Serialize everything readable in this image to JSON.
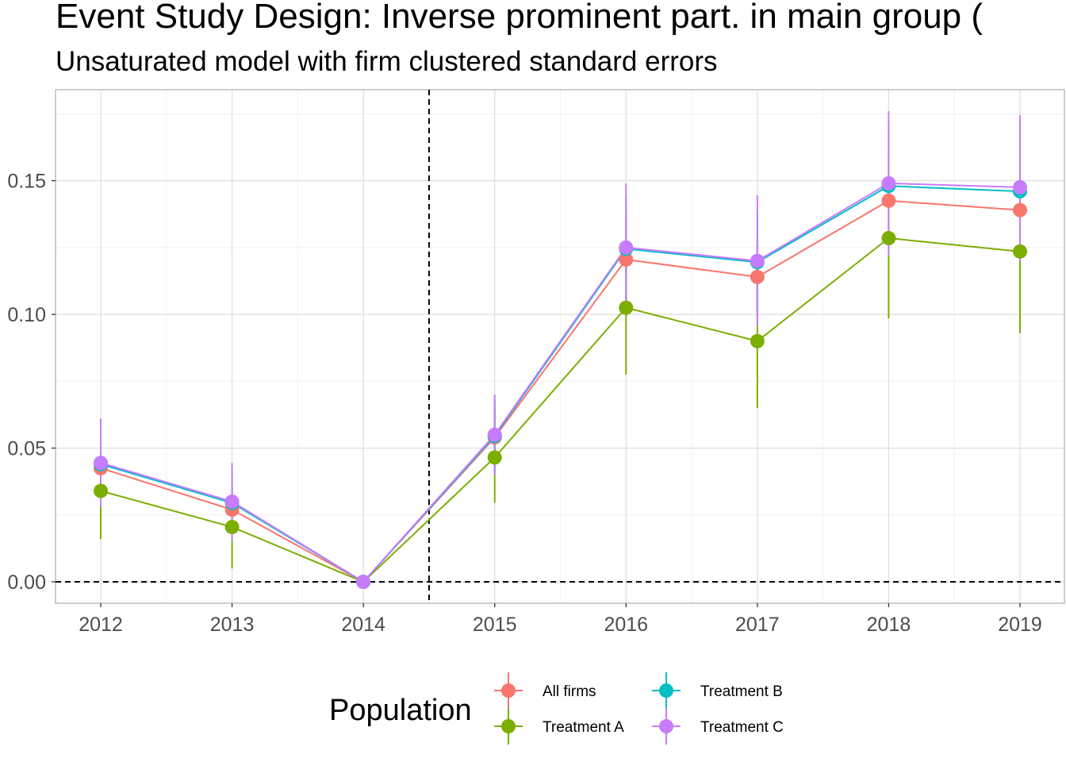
{
  "chart_data": {
    "type": "line",
    "title": "Event Study Design: Inverse prominent part. in main group (",
    "subtitle": "Unsaturated model with firm clustered standard errors",
    "xlabel": "",
    "ylabel": "",
    "categories": [
      "2012",
      "2013",
      "2014",
      "2015",
      "2016",
      "2017",
      "2018",
      "2019"
    ],
    "ylim": [
      -0.008,
      0.184
    ],
    "yticks": [
      0.0,
      0.05,
      0.1,
      0.15
    ],
    "ytick_labels": [
      "0.00",
      "0.05",
      "0.10",
      "0.15"
    ],
    "grid": true,
    "reference_lines": {
      "horizontal_y": 0.0,
      "vertical_between": [
        "2014",
        "2015"
      ],
      "style": "dashed"
    },
    "legend": {
      "title": "Population",
      "placement": "bottom"
    },
    "series": [
      {
        "name": "All firms",
        "color": "#F8766D",
        "values": [
          0.0425,
          0.027,
          0.0,
          0.054,
          0.1205,
          0.114,
          0.1425,
          0.139
        ],
        "ci_low": [
          0.033,
          0.018,
          0.0,
          0.042,
          0.104,
          0.099,
          0.126,
          0.123
        ],
        "ci_high": [
          0.052,
          0.036,
          0.0,
          0.066,
          0.137,
          0.129,
          0.159,
          0.155
        ]
      },
      {
        "name": "Treatment A",
        "color": "#7CAE00",
        "values": [
          0.034,
          0.0205,
          0.0,
          0.0465,
          0.1025,
          0.09,
          0.1285,
          0.1235
        ],
        "ci_low": [
          0.016,
          0.005,
          0.0,
          0.0295,
          0.0775,
          0.065,
          0.0985,
          0.093
        ],
        "ci_high": [
          0.052,
          0.036,
          0.0,
          0.0635,
          0.1275,
          0.115,
          0.1585,
          0.154
        ]
      },
      {
        "name": "Treatment B",
        "color": "#00BFC4",
        "values": [
          0.044,
          0.0295,
          0.0,
          0.0545,
          0.1245,
          0.1195,
          0.148,
          0.146
        ],
        "ci_low": [
          0.03,
          0.018,
          0.0,
          0.041,
          0.105,
          0.1,
          0.126,
          0.123
        ],
        "ci_high": [
          0.058,
          0.041,
          0.0,
          0.068,
          0.144,
          0.139,
          0.17,
          0.169
        ]
      },
      {
        "name": "Treatment C",
        "color": "#C77CFF",
        "values": [
          0.0445,
          0.03,
          0.0,
          0.055,
          0.125,
          0.12,
          0.149,
          0.1475
        ],
        "ci_low": [
          0.028,
          0.0155,
          0.0,
          0.04,
          0.101,
          0.0955,
          0.122,
          0.12
        ],
        "ci_high": [
          0.061,
          0.0445,
          0.0,
          0.07,
          0.149,
          0.1445,
          0.176,
          0.1745
        ]
      }
    ]
  }
}
